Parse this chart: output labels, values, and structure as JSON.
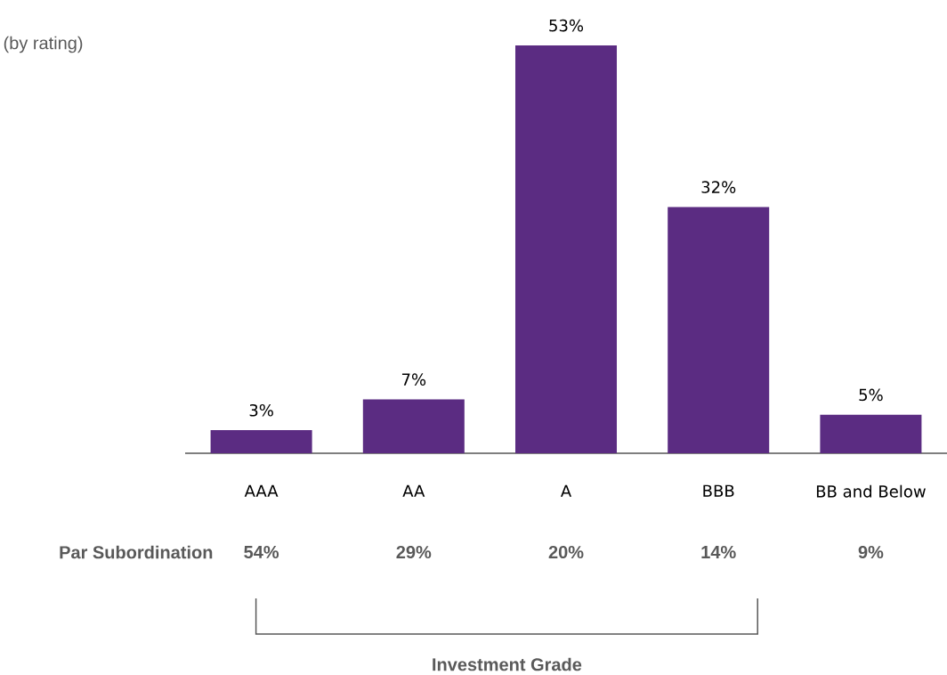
{
  "chart_data": {
    "type": "bar",
    "categories": [
      "AAA",
      "AA",
      "A",
      "BBB",
      "BB and Below"
    ],
    "values": [
      3,
      7,
      53,
      32,
      5
    ],
    "value_labels": [
      "3%",
      "7%",
      "53%",
      "32%",
      "5%"
    ],
    "color": "#5b2c82",
    "annotations": [
      "(by rating)",
      "Par Subordination",
      "54%",
      "29%",
      "20%",
      "14%",
      "9%",
      "Investment Grade"
    ]
  }
}
